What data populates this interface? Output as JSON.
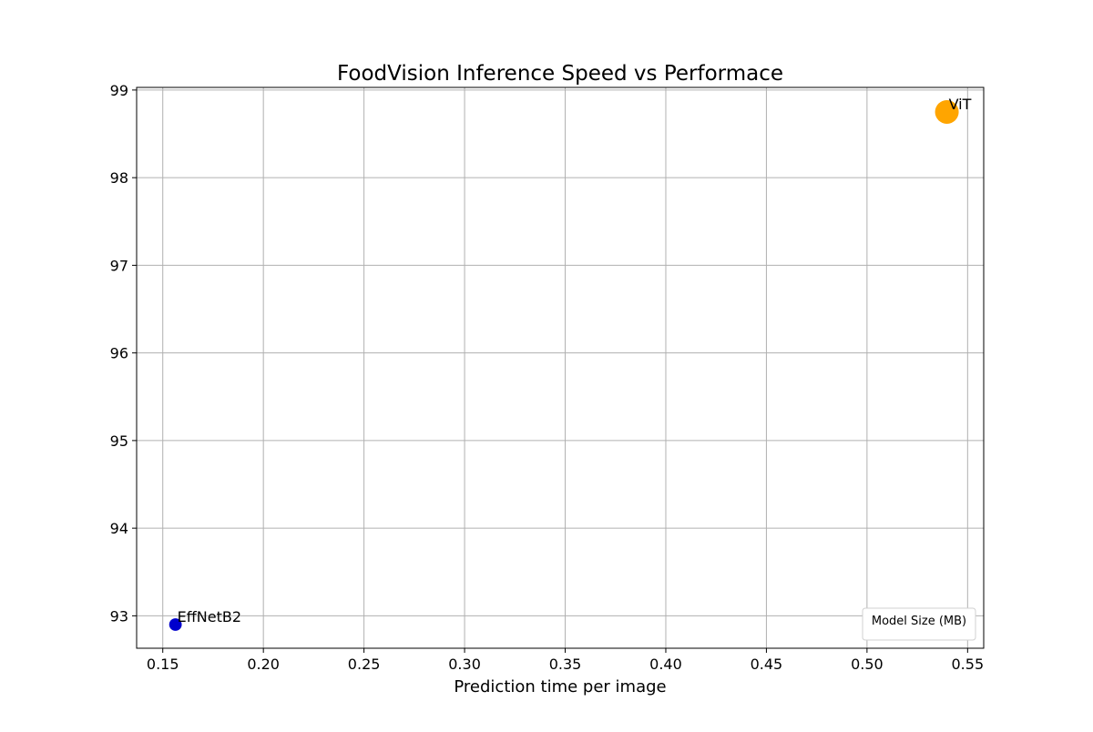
{
  "chart_data": {
    "type": "scatter",
    "title": "FoodVision Inference Speed vs Performace",
    "xlabel": "Prediction time per image",
    "ylabel": "",
    "xlim": [
      0.137,
      0.558
    ],
    "ylim": [
      92.63,
      99.03
    ],
    "xticks": [
      "0.15",
      "0.20",
      "0.25",
      "0.30",
      "0.35",
      "0.40",
      "0.45",
      "0.50",
      "0.55"
    ],
    "xtick_values": [
      0.15,
      0.2,
      0.25,
      0.3,
      0.35,
      0.4,
      0.45,
      0.5,
      0.55
    ],
    "yticks": [
      "93",
      "94",
      "95",
      "96",
      "97",
      "98",
      "99"
    ],
    "ytick_values": [
      93,
      94,
      95,
      96,
      97,
      98,
      99
    ],
    "grid": true,
    "points": [
      {
        "label": "EffNetB2",
        "x": 0.1563,
        "y": 92.9,
        "color": "#0000cd",
        "relative_size": 0.08
      },
      {
        "label": "ViT",
        "x": 0.5397,
        "y": 98.75,
        "color": "#ffa500",
        "relative_size": 1.0
      }
    ],
    "legend": {
      "title": "Model Size (MB)",
      "placement": "lower-right"
    }
  }
}
